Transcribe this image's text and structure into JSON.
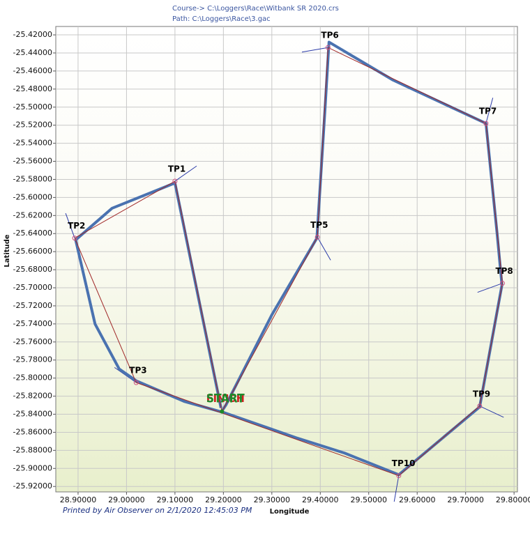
{
  "chart_data": {
    "type": "line",
    "title": "Course-> C:\\Loggers\\Race\\Witbank SR 2020.crs",
    "subtitle": "Path: C:\\Loggers\\Race\\3.gac",
    "footnote": "Printed by Air Observer on 2/1/2020 12:45:03 PM",
    "x_label": "Longitude",
    "y_label": "Latitude",
    "grid": true,
    "xlim": [
      28.854,
      29.807
    ],
    "ylim": [
      -25.926,
      -25.4107
    ],
    "xticks": [
      {
        "value": 28.9,
        "label": "28.90000"
      },
      {
        "value": 29.0,
        "label": "29.00000"
      },
      {
        "value": 29.1,
        "label": "29.10000"
      },
      {
        "value": 29.2,
        "label": "29.20000"
      },
      {
        "value": 29.3,
        "label": "29.30000"
      },
      {
        "value": 29.4,
        "label": "29.40000"
      },
      {
        "value": 29.5,
        "label": "29.50000"
      },
      {
        "value": 29.6,
        "label": "29.60000"
      },
      {
        "value": 29.7,
        "label": "29.70000"
      },
      {
        "value": 29.8,
        "label": "29.80000"
      }
    ],
    "yticks": [
      {
        "value": -25.42,
        "label": "-25.42000"
      },
      {
        "value": -25.44,
        "label": "-25.44000"
      },
      {
        "value": -25.46,
        "label": "-25.46000"
      },
      {
        "value": -25.48,
        "label": "-25.48000"
      },
      {
        "value": -25.5,
        "label": "-25.50000"
      },
      {
        "value": -25.52,
        "label": "-25.52000"
      },
      {
        "value": -25.54,
        "label": "-25.54000"
      },
      {
        "value": -25.56,
        "label": "-25.56000"
      },
      {
        "value": -25.58,
        "label": "-25.58000"
      },
      {
        "value": -25.6,
        "label": "-25.60000"
      },
      {
        "value": -25.62,
        "label": "-25.62000"
      },
      {
        "value": -25.64,
        "label": "-25.64000"
      },
      {
        "value": -25.66,
        "label": "-25.66000"
      },
      {
        "value": -25.68,
        "label": "-25.68000"
      },
      {
        "value": -25.7,
        "label": "-25.70000"
      },
      {
        "value": -25.72,
        "label": "-25.72000"
      },
      {
        "value": -25.74,
        "label": "-25.74000"
      },
      {
        "value": -25.76,
        "label": "-25.76000"
      },
      {
        "value": -25.78,
        "label": "-25.78000"
      },
      {
        "value": -25.8,
        "label": "-25.80000"
      },
      {
        "value": -25.82,
        "label": "-25.82000"
      },
      {
        "value": -25.84,
        "label": "-25.84000"
      },
      {
        "value": -25.86,
        "label": "-25.86000"
      },
      {
        "value": -25.88,
        "label": "-25.88000"
      },
      {
        "value": -25.9,
        "label": "-25.90000"
      },
      {
        "value": -25.92,
        "label": "-25.92000"
      }
    ],
    "series": [
      {
        "color": "#4a72b0",
        "width": 4,
        "x": [
          29.195,
          29.1,
          28.97,
          28.895,
          28.935,
          28.985,
          29.02,
          29.12,
          29.2,
          29.35,
          29.45,
          29.562,
          29.729,
          29.775,
          29.765,
          29.742,
          29.55,
          29.418,
          29.41,
          29.393,
          29.3,
          29.205,
          29.195
        ],
        "values": [
          -25.833,
          -25.584,
          -25.612,
          -25.647,
          -25.74,
          -25.79,
          -25.803,
          -25.826,
          -25.838,
          -25.866,
          -25.883,
          -25.907,
          -25.832,
          -25.697,
          -25.64,
          -25.518,
          -25.47,
          -25.428,
          -25.5,
          -25.645,
          -25.73,
          -25.83,
          -25.838
        ]
      },
      {
        "color": "#a02828",
        "width": 1,
        "x": [
          29.197,
          29.1,
          28.893,
          29.02,
          29.562,
          29.729,
          29.776,
          29.742,
          29.416,
          29.394,
          29.197
        ],
        "values": [
          -25.837,
          -25.582,
          -25.645,
          -25.805,
          -25.908,
          -25.831,
          -25.695,
          -25.518,
          -25.434,
          -25.644,
          -25.837
        ]
      }
    ],
    "points": [
      {
        "label": "TP1",
        "x": 29.1,
        "y": -25.582
      },
      {
        "label": "TP2",
        "x": 28.893,
        "y": -25.645
      },
      {
        "label": "TP3",
        "x": 29.02,
        "y": -25.805
      },
      {
        "label": "TP5",
        "x": 29.394,
        "y": -25.644
      },
      {
        "label": "TP6",
        "x": 29.416,
        "y": -25.434
      },
      {
        "label": "TP7",
        "x": 29.742,
        "y": -25.518
      },
      {
        "label": "TP8",
        "x": 29.776,
        "y": -25.695
      },
      {
        "label": "TP9",
        "x": 29.729,
        "y": -25.831
      },
      {
        "label": "TP10",
        "x": 29.562,
        "y": -25.908
      }
    ],
    "start": {
      "label": "START",
      "color": "#1d8a2a",
      "x": 29.197,
      "y": -25.837
    },
    "finish": {
      "label": "FINISH",
      "color": "#d02020",
      "x": 29.197,
      "y": -25.837
    }
  }
}
